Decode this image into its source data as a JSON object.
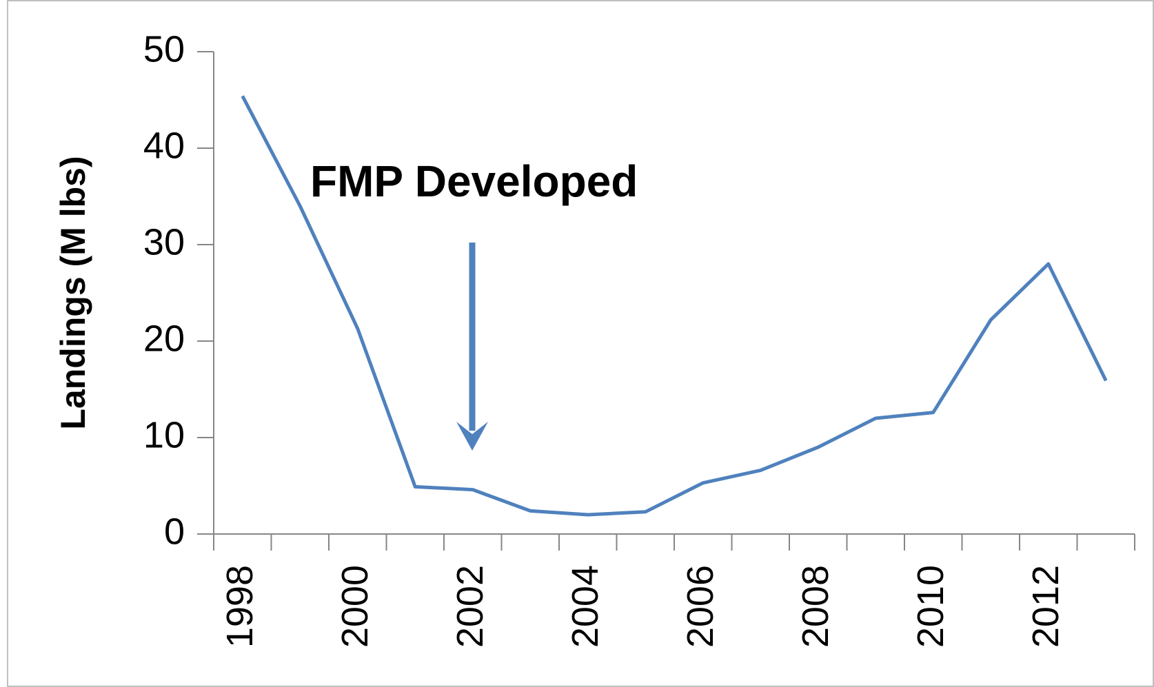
{
  "chart_data": {
    "type": "line",
    "ylabel": "Landings (M lbs)",
    "annotation": "FMP Developed",
    "categories": [
      "1998",
      null,
      "2000",
      null,
      "2002",
      null,
      "2004",
      null,
      "2006",
      null,
      "2008",
      null,
      "2010",
      null,
      "2012",
      null
    ],
    "series": [
      {
        "name": "Landings",
        "color": "#4f81bd",
        "values": [
          45.4,
          34,
          21.3,
          4.9,
          4.6,
          2.4,
          2.0,
          2.3,
          5.3,
          6.6,
          9.0,
          12.0,
          12.6,
          22.2,
          28.0,
          15.9
        ]
      }
    ],
    "ylim": [
      0,
      50
    ],
    "yticks": [
      0,
      10,
      20,
      30,
      40,
      50
    ]
  }
}
